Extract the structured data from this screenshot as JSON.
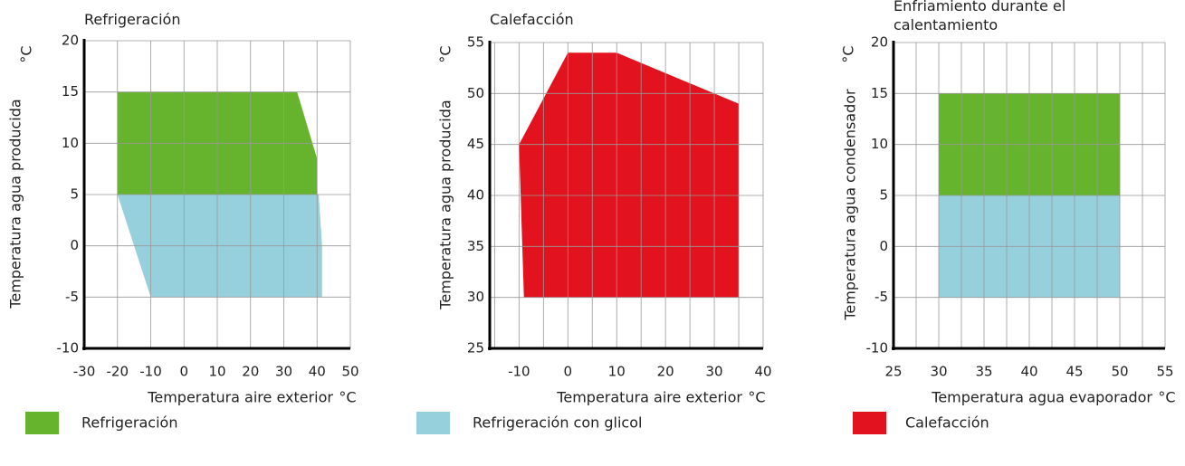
{
  "chart_data": [
    {
      "type": "area",
      "title": "Refrigeración",
      "xlabel": "Temperatura aire exterior",
      "xunit": "°C",
      "ylabel": "Temperatura agua producida",
      "yunit": "°C",
      "xlim": [
        -30,
        50
      ],
      "xticks": [
        -30,
        -20,
        -10,
        0,
        10,
        20,
        30,
        40,
        50
      ],
      "xgrid": [
        -20,
        -10,
        0,
        10,
        20,
        30,
        40,
        50
      ],
      "ylim": [
        -10,
        20
      ],
      "yticks": [
        -10,
        -5,
        0,
        5,
        10,
        15,
        20
      ],
      "grid": true,
      "series": [
        {
          "name": "Refrigeración",
          "color": "#66b32e",
          "x": [
            -20,
            34,
            40,
            40,
            -20
          ],
          "y": [
            15,
            15,
            8.5,
            5,
            5
          ]
        },
        {
          "name": "Refrigeración con glicol",
          "color": "#96d0dc",
          "x": [
            -20,
            40.5,
            41.5,
            41.5,
            -10
          ],
          "y": [
            5,
            5,
            0,
            -5,
            -5
          ]
        }
      ]
    },
    {
      "type": "area",
      "title": "Calefacción",
      "xlabel": "Temperatura aire exterior",
      "xunit": "°C",
      "ylabel": "Temperatura agua producida",
      "yunit": "°C",
      "xlim": [
        -16,
        40
      ],
      "xticks": [
        -10,
        0,
        10,
        20,
        30,
        40
      ],
      "xgrid": [
        -15,
        -10,
        -5,
        0,
        5,
        10,
        15,
        20,
        25,
        30,
        35,
        40
      ],
      "ylim": [
        25,
        55
      ],
      "yticks": [
        25,
        30,
        35,
        40,
        45,
        50,
        55
      ],
      "grid": true,
      "series": [
        {
          "name": "Calefacción",
          "color": "#e2131e",
          "x": [
            -10,
            0,
            10,
            35,
            35,
            -9
          ],
          "y": [
            45,
            54,
            54,
            49,
            30,
            30
          ]
        }
      ]
    },
    {
      "type": "area",
      "title": "Enfriamiento durante el calentamiento",
      "xlabel": "Temperatura agua evaporador",
      "xunit": "°C",
      "ylabel": "Temperatura agua condensador",
      "yunit": "°C",
      "xlim": [
        25,
        55
      ],
      "xticks": [
        25,
        30,
        35,
        40,
        45,
        50,
        55
      ],
      "xgrid": [
        27.5,
        30,
        32.5,
        35,
        37.5,
        40,
        42.5,
        45,
        47.5,
        50,
        52.5,
        55
      ],
      "ylim": [
        -10,
        20
      ],
      "yticks": [
        -10,
        -5,
        0,
        5,
        10,
        15,
        20
      ],
      "grid": true,
      "series": [
        {
          "color": "#66b32e",
          "x": [
            30,
            50,
            50,
            30
          ],
          "y": [
            15,
            15,
            5,
            5
          ]
        },
        {
          "color": "#96d0dc",
          "x": [
            30,
            50,
            50,
            30
          ],
          "y": [
            5,
            5,
            -5,
            -5
          ]
        }
      ]
    }
  ]
}
